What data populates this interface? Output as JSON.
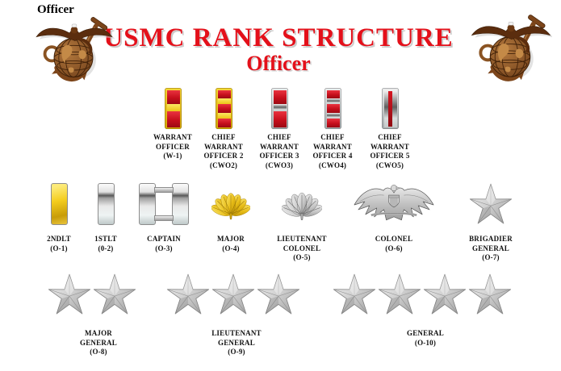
{
  "header": {
    "corner_label": "Officer",
    "title": "USMC RANK STRUCTURE",
    "subtitle": "Officer",
    "left_emblem": "usmc-eagle-globe-anchor",
    "right_emblem": "usmc-eagle-globe-anchor"
  },
  "colors": {
    "title_red": "#e4101a",
    "insignia_scarlet": "#c60f1c",
    "insignia_gold": "#f2c91d",
    "insignia_silver": "#c7c7c7",
    "label_black": "#111111",
    "emblem_brown": "#7c451a",
    "background": "#ffffff"
  },
  "ranks": {
    "warrant": [
      {
        "label": "WARRANT\nOFFICER\n(W-1)",
        "insignia": "gold-bar-scarlet-blocks-one-gold-stripe"
      },
      {
        "label": "CHIEF\nWARRANT\nOFFICER 2\n(CWO2)",
        "insignia": "gold-bar-scarlet-blocks-two-gold-stripes"
      },
      {
        "label": "CHIEF\nWARRANT\nOFFICER 3\n(CWO3)",
        "insignia": "silver-bar-scarlet-blocks-one-silver-stripe"
      },
      {
        "label": "CHIEF\nWARRANT\nOFFICER 4\n(CWO4)",
        "insignia": "silver-bar-scarlet-blocks-two-silver-stripes"
      },
      {
        "label": "CHIEF\nWARRANT\nOFFICER 5\n(CWO5)",
        "insignia": "silver-bar-vertical-scarlet-stripe"
      }
    ],
    "company_field": [
      {
        "label": "2NDLT\n(O-1)",
        "insignia": "single-gold-bar"
      },
      {
        "label": "1STLT\n(0-2)",
        "insignia": "single-silver-bar"
      },
      {
        "label": "CAPTAIN\n(O-3)",
        "insignia": "double-silver-bars"
      },
      {
        "label": "MAJOR\n(O-4)",
        "insignia": "gold-oak-leaf"
      },
      {
        "label": "LIEUTENANT\nCOLONEL\n(O-5)",
        "insignia": "silver-oak-leaf"
      },
      {
        "label": "COLONEL\n(O-6)",
        "insignia": "silver-eagle"
      },
      {
        "label": "BRIGADIER\nGENERAL\n(O-7)",
        "insignia": "silver-stars",
        "stars": 1
      }
    ],
    "general": [
      {
        "label": "MAJOR\nGENERAL\n(O-8)",
        "insignia": "silver-stars",
        "stars": 2
      },
      {
        "label": "LIEUTENANT\nGENERAL\n(O-9)",
        "insignia": "silver-stars",
        "stars": 3
      },
      {
        "label": "GENERAL\n(O-10)",
        "insignia": "silver-stars",
        "stars": 4
      }
    ]
  }
}
